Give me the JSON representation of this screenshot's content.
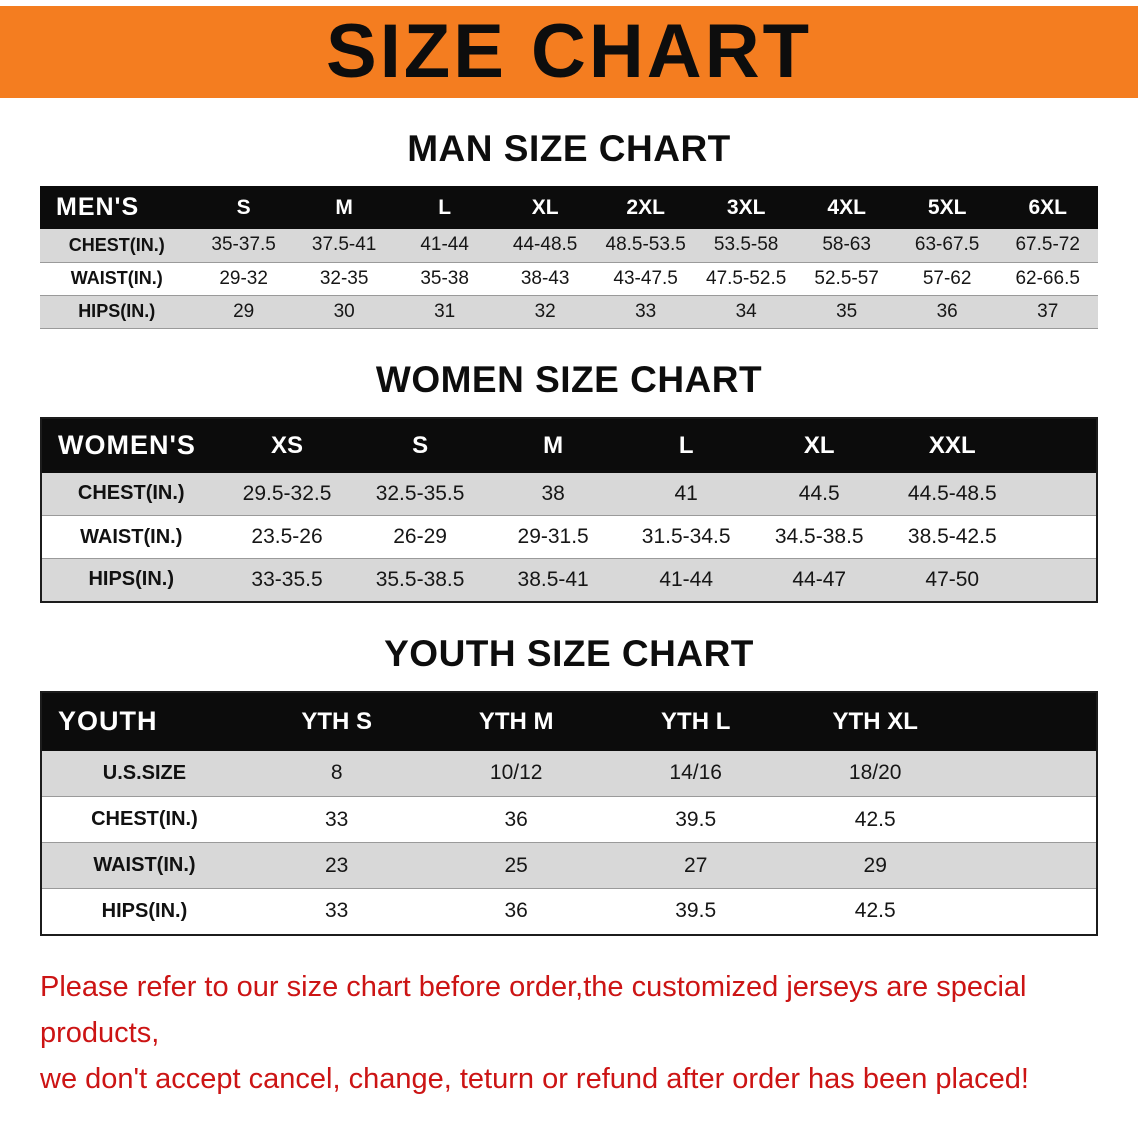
{
  "banner": {
    "title": "SIZE CHART",
    "bg_color": "#f47d20"
  },
  "chart_data": [
    {
      "type": "table",
      "id": "mens",
      "title": "MAN SIZE CHART",
      "corner": "MEN'S",
      "columns": [
        "S",
        "M",
        "L",
        "XL",
        "2XL",
        "3XL",
        "4XL",
        "5XL",
        "6XL"
      ],
      "rows": [
        {
          "label": "CHEST(IN.)",
          "values": [
            "35-37.5",
            "37.5-41",
            "41-44",
            "44-48.5",
            "48.5-53.5",
            "53.5-58",
            "58-63",
            "63-67.5",
            "67.5-72"
          ]
        },
        {
          "label": "WAIST(IN.)",
          "values": [
            "29-32",
            "32-35",
            "35-38",
            "38-43",
            "43-47.5",
            "47.5-52.5",
            "52.5-57",
            "57-62",
            "62-66.5"
          ]
        },
        {
          "label": "HIPS(IN.)",
          "values": [
            "29",
            "30",
            "31",
            "32",
            "33",
            "34",
            "35",
            "36",
            "37"
          ]
        }
      ]
    },
    {
      "type": "table",
      "id": "womens",
      "title": "WOMEN SIZE CHART",
      "corner": "WOMEN'S",
      "columns": [
        "XS",
        "S",
        "M",
        "L",
        "XL",
        "XXL"
      ],
      "rows": [
        {
          "label": "CHEST(IN.)",
          "values": [
            "29.5-32.5",
            "32.5-35.5",
            "38",
            "41",
            "44.5",
            "44.5-48.5"
          ]
        },
        {
          "label": "WAIST(IN.)",
          "values": [
            "23.5-26",
            "26-29",
            "29-31.5",
            "31.5-34.5",
            "34.5-38.5",
            "38.5-42.5"
          ]
        },
        {
          "label": "HIPS(IN.)",
          "values": [
            "33-35.5",
            "35.5-38.5",
            "38.5-41",
            "41-44",
            "44-47",
            "47-50"
          ]
        }
      ]
    },
    {
      "type": "table",
      "id": "youth",
      "title": "YOUTH SIZE CHART",
      "corner": "YOUTH",
      "columns": [
        "YTH S",
        "YTH M",
        "YTH L",
        "YTH XL"
      ],
      "rows": [
        {
          "label": "U.S.SIZE",
          "values": [
            "8",
            "10/12",
            "14/16",
            "18/20"
          ]
        },
        {
          "label": "CHEST(IN.)",
          "values": [
            "33",
            "36",
            "39.5",
            "42.5"
          ]
        },
        {
          "label": "WAIST(IN.)",
          "values": [
            "23",
            "25",
            "27",
            "29"
          ]
        },
        {
          "label": "HIPS(IN.)",
          "values": [
            "33",
            "36",
            "39.5",
            "42.5"
          ]
        }
      ]
    }
  ],
  "footer": {
    "color": "#cc1414",
    "lines": [
      "Please refer to our size chart before order,the customized jerseys are special products,",
      "we don't accept cancel, change, teturn or refund after order has been placed!"
    ]
  }
}
